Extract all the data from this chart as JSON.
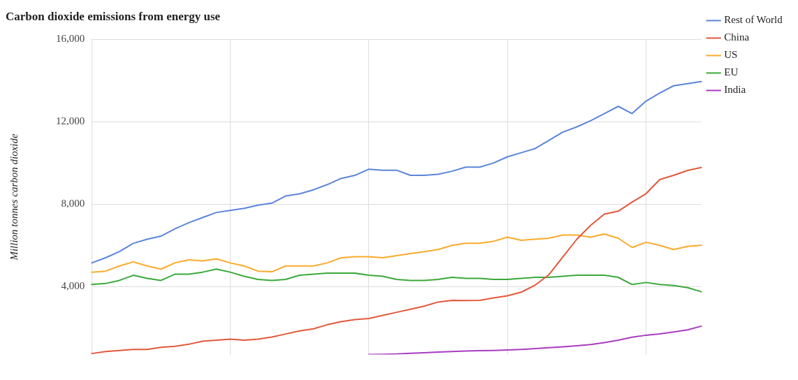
{
  "chart_data": {
    "type": "line",
    "title": "Carbon dioxide emissions from energy use",
    "ylabel": "Million tonnes carbon dioxide",
    "categories": [
      null,
      null,
      null,
      null,
      null,
      null,
      null,
      null,
      null,
      null,
      null,
      null,
      null,
      null,
      null,
      null,
      null,
      null,
      null,
      null,
      null,
      null,
      null,
      null,
      null,
      null,
      null,
      null,
      null,
      null,
      null,
      null,
      null,
      null,
      null,
      null,
      null,
      null,
      null,
      null,
      null,
      null,
      null,
      null,
      null
    ],
    "ylim": [
      700,
      16000
    ],
    "yticks": [
      {
        "value": 4000,
        "label": "4,000"
      },
      {
        "value": 8000,
        "label": "8,000"
      },
      {
        "value": 12000,
        "label": "12,000"
      },
      {
        "value": 16000,
        "label": "16,000"
      }
    ],
    "grid": true,
    "legend": "right",
    "marker": "none",
    "line_style": "solid",
    "series": [
      {
        "name": "Rest of World",
        "color": "#5b85d9",
        "values": [
          5150,
          5400,
          5700,
          6100,
          6300,
          6450,
          6800,
          7100,
          7350,
          7600,
          7700,
          7800,
          7950,
          8050,
          8400,
          8500,
          8700,
          8950,
          9250,
          9400,
          9700,
          9650,
          9650,
          9400,
          9400,
          9450,
          9600,
          9800,
          9800,
          10000,
          10300,
          10500,
          10700,
          11100,
          11500,
          11750,
          12050,
          12400,
          12750,
          12400,
          13000,
          13400,
          13750,
          13850,
          13950
        ]
      },
      {
        "name": "China",
        "color": "#e2583a",
        "values": [
          750,
          850,
          900,
          950,
          950,
          1050,
          1100,
          1200,
          1350,
          1400,
          1450,
          1400,
          1450,
          1550,
          1700,
          1850,
          1950,
          2150,
          2300,
          2400,
          2450,
          2600,
          2750,
          2900,
          3050,
          3250,
          3330,
          3320,
          3330,
          3450,
          3550,
          3730,
          4070,
          4580,
          5440,
          6290,
          6970,
          7520,
          7660,
          8100,
          8510,
          9200,
          9400,
          9640,
          9780
        ]
      },
      {
        "name": "US",
        "color": "#fbaa2b",
        "values": [
          4700,
          4750,
          5000,
          5200,
          5000,
          4850,
          5150,
          5300,
          5250,
          5350,
          5150,
          5000,
          4750,
          4720,
          5000,
          5000,
          5000,
          5150,
          5400,
          5450,
          5450,
          5400,
          5500,
          5600,
          5700,
          5800,
          6000,
          6100,
          6100,
          6200,
          6400,
          6250,
          6300,
          6350,
          6500,
          6500,
          6400,
          6550,
          6350,
          5900,
          6150,
          6000,
          5800,
          5950,
          6000
        ]
      },
      {
        "name": "EU",
        "color": "#3aa93a",
        "values": [
          4100,
          4150,
          4300,
          4550,
          4400,
          4300,
          4600,
          4600,
          4700,
          4850,
          4700,
          4500,
          4350,
          4300,
          4350,
          4550,
          4600,
          4650,
          4650,
          4650,
          4550,
          4500,
          4350,
          4300,
          4300,
          4350,
          4450,
          4400,
          4400,
          4350,
          4350,
          4400,
          4450,
          4450,
          4500,
          4550,
          4550,
          4550,
          4450,
          4100,
          4200,
          4100,
          4050,
          3950,
          3750
        ]
      },
      {
        "name": "India",
        "color": "#a83cc0",
        "values": [
          null,
          null,
          null,
          null,
          null,
          null,
          null,
          null,
          null,
          null,
          null,
          null,
          null,
          null,
          null,
          null,
          null,
          null,
          null,
          null,
          700,
          710,
          730,
          760,
          790,
          820,
          850,
          870,
          890,
          900,
          920,
          950,
          990,
          1030,
          1080,
          1130,
          1190,
          1280,
          1400,
          1540,
          1640,
          1700,
          1800,
          1900,
          2080
        ]
      }
    ]
  }
}
